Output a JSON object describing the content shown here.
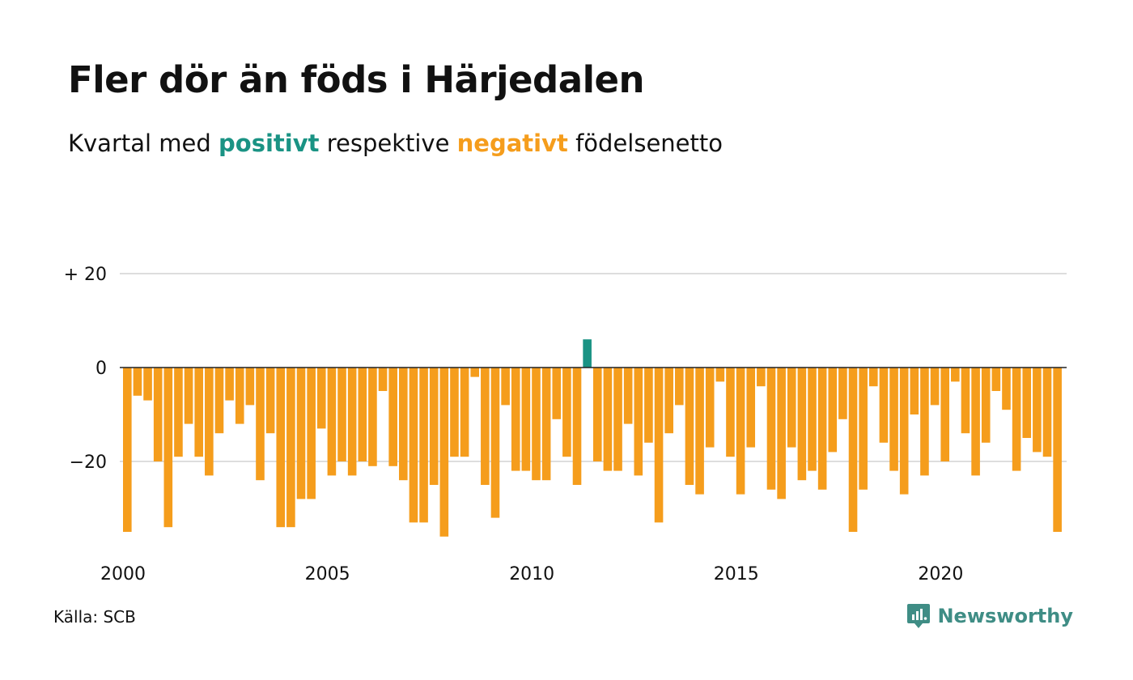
{
  "title": "Fler dör än föds i Härjedalen",
  "subtitle": {
    "prefix": "Kvartal med ",
    "positive_word": "positivt",
    "middle": " respektive ",
    "negative_word": "negativt",
    "suffix": " födelsenetto"
  },
  "colors": {
    "positive": "#1a9384",
    "negative": "#f59d1c",
    "grid": "#dddddd",
    "zero": "#222222",
    "brand": "#3f8d85"
  },
  "source": "Källa: SCB",
  "brand": {
    "name": "Newsworthy",
    "icon": "newsworthy-logo-icon"
  },
  "chart_data": {
    "type": "bar",
    "x_start": "2000 Q1",
    "frequency": "quarterly",
    "ylim": [
      -38,
      22
    ],
    "y_ticks": [
      {
        "value": 20,
        "label": "+ 20"
      },
      {
        "value": 0,
        "label": "0"
      },
      {
        "value": -20,
        "label": "−20"
      }
    ],
    "x_ticks": [
      "2000",
      "2005",
      "2010",
      "2015",
      "2020"
    ],
    "grid": true,
    "values": [
      -35,
      -6,
      -7,
      -20,
      -34,
      -19,
      -12,
      -19,
      -23,
      -14,
      -7,
      -12,
      -8,
      -24,
      -14,
      -34,
      -34,
      -28,
      -28,
      -13,
      -23,
      -20,
      -23,
      -20,
      -21,
      -5,
      -21,
      -24,
      -33,
      -33,
      -25,
      -36,
      -19,
      -19,
      -2,
      -25,
      -32,
      -8,
      -22,
      -22,
      -24,
      -24,
      -11,
      -19,
      -25,
      6,
      -20,
      -22,
      -22,
      -12,
      -23,
      -16,
      -33,
      -14,
      -8,
      -25,
      -27,
      -17,
      -3,
      -19,
      -27,
      -17,
      -4,
      -26,
      -28,
      -17,
      -24,
      -22,
      -26,
      -18,
      -11,
      -35,
      -26,
      -4,
      -16,
      -22,
      -27,
      -10,
      -23,
      -8,
      -20,
      -3,
      -14,
      -23,
      -16,
      -5,
      -9,
      -22,
      -15,
      -18,
      -19,
      -35
    ]
  }
}
